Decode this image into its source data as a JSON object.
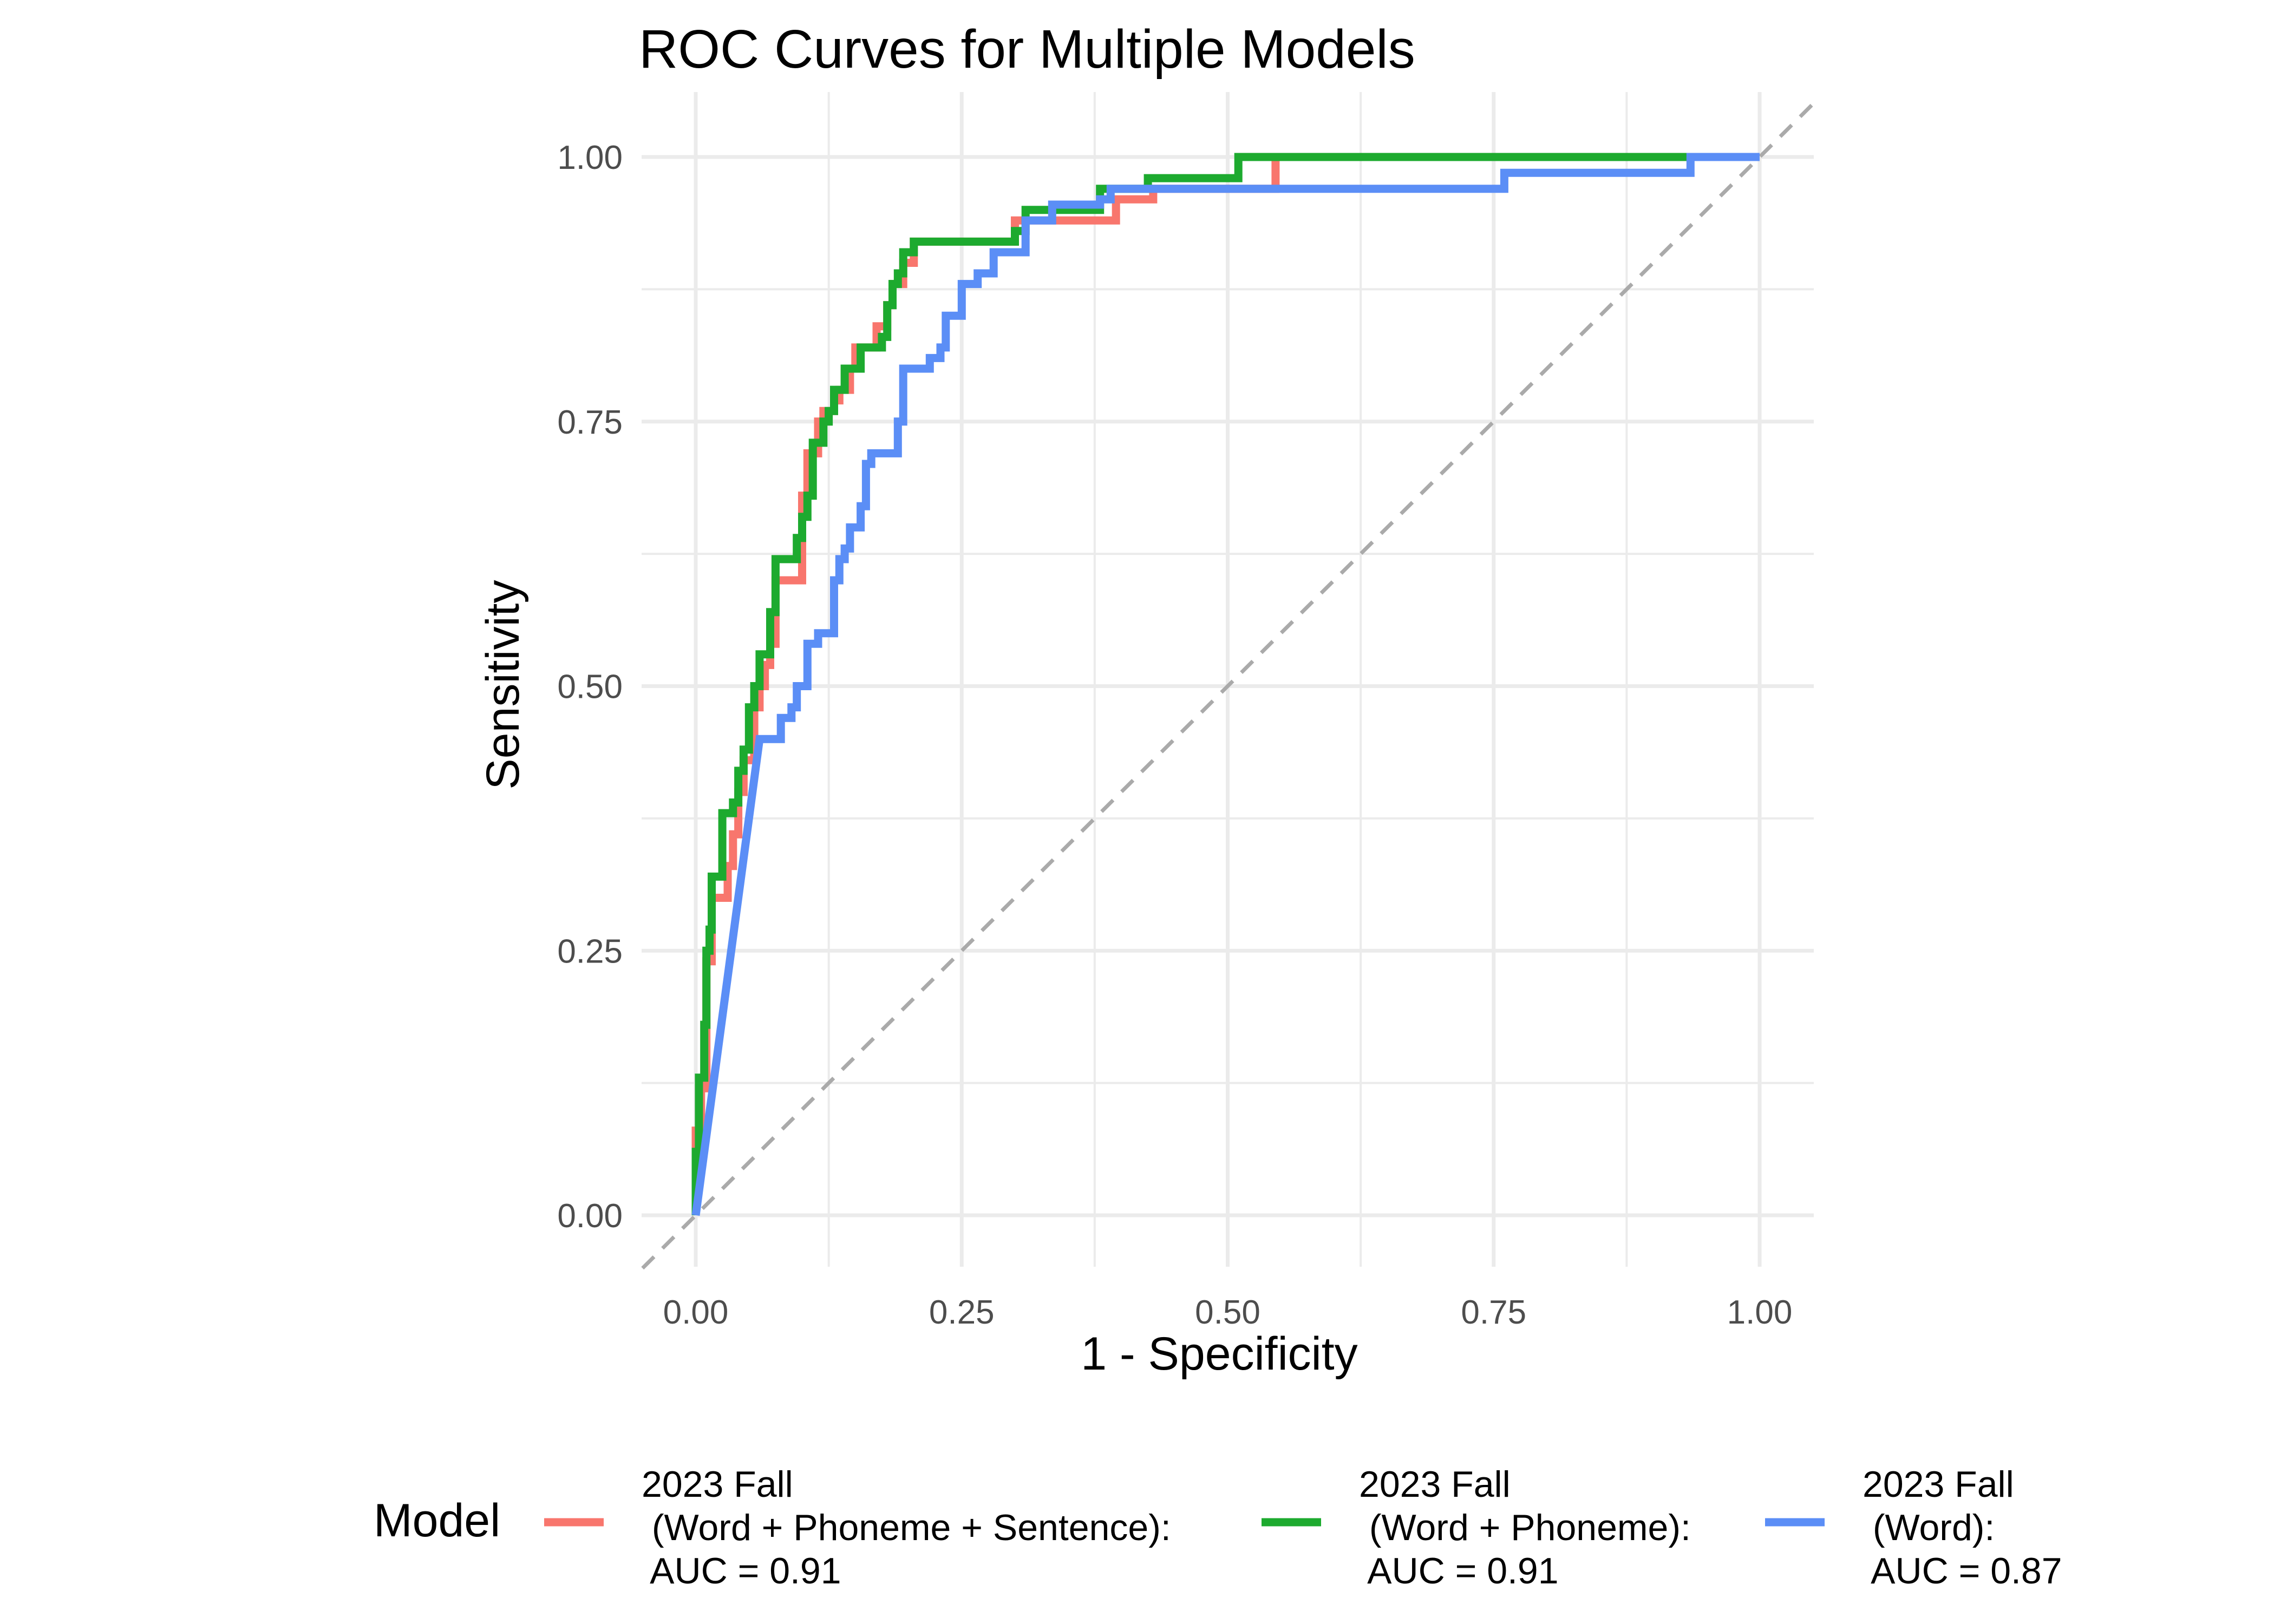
{
  "chart_data": {
    "type": "line",
    "title": "ROC Curves for Multiple Models",
    "xlabel": "1 - Specificity",
    "ylabel": "Sensitivity",
    "xlim": [
      0,
      1
    ],
    "ylim": [
      0,
      1
    ],
    "x_ticks": [
      "0.00",
      "0.25",
      "0.50",
      "0.75",
      "1.00"
    ],
    "y_ticks": [
      "0.00",
      "0.25",
      "0.50",
      "0.75",
      "1.00"
    ],
    "grid": true,
    "legend_position": "bottom",
    "legend_title": "Model",
    "reference_line": {
      "style": "dashed",
      "color": "#aaaaaa",
      "points": [
        [
          0,
          0
        ],
        [
          1,
          1
        ]
      ]
    },
    "series": [
      {
        "name": "2023 Fall\n (Word + Phoneme + Sentence):\n AUC = 0.91",
        "color": "#F8766D",
        "points": [
          [
            0,
            0
          ],
          [
            0,
            0.08
          ],
          [
            0.005,
            0.08
          ],
          [
            0.005,
            0.12
          ],
          [
            0.01,
            0.12
          ],
          [
            0.01,
            0.24
          ],
          [
            0.015,
            0.24
          ],
          [
            0.015,
            0.3
          ],
          [
            0.03,
            0.3
          ],
          [
            0.03,
            0.33
          ],
          [
            0.035,
            0.33
          ],
          [
            0.035,
            0.36
          ],
          [
            0.04,
            0.36
          ],
          [
            0.04,
            0.4
          ],
          [
            0.045,
            0.4
          ],
          [
            0.045,
            0.43
          ],
          [
            0.055,
            0.43
          ],
          [
            0.055,
            0.48
          ],
          [
            0.06,
            0.48
          ],
          [
            0.06,
            0.5
          ],
          [
            0.065,
            0.5
          ],
          [
            0.065,
            0.52
          ],
          [
            0.07,
            0.52
          ],
          [
            0.07,
            0.54
          ],
          [
            0.075,
            0.54
          ],
          [
            0.075,
            0.6
          ],
          [
            0.1,
            0.6
          ],
          [
            0.1,
            0.68
          ],
          [
            0.105,
            0.68
          ],
          [
            0.105,
            0.72
          ],
          [
            0.115,
            0.72
          ],
          [
            0.115,
            0.75
          ],
          [
            0.12,
            0.75
          ],
          [
            0.12,
            0.76
          ],
          [
            0.13,
            0.76
          ],
          [
            0.13,
            0.77
          ],
          [
            0.135,
            0.77
          ],
          [
            0.135,
            0.78
          ],
          [
            0.145,
            0.78
          ],
          [
            0.145,
            0.8
          ],
          [
            0.15,
            0.8
          ],
          [
            0.15,
            0.82
          ],
          [
            0.17,
            0.82
          ],
          [
            0.17,
            0.84
          ],
          [
            0.18,
            0.84
          ],
          [
            0.18,
            0.86
          ],
          [
            0.185,
            0.86
          ],
          [
            0.185,
            0.88
          ],
          [
            0.195,
            0.88
          ],
          [
            0.195,
            0.9
          ],
          [
            0.205,
            0.9
          ],
          [
            0.205,
            0.92
          ],
          [
            0.3,
            0.92
          ],
          [
            0.3,
            0.94
          ],
          [
            0.315,
            0.94
          ],
          [
            0.315,
            0.94
          ],
          [
            0.395,
            0.94
          ],
          [
            0.395,
            0.96
          ],
          [
            0.43,
            0.96
          ],
          [
            0.43,
            0.97
          ],
          [
            0.545,
            0.97
          ],
          [
            0.545,
            0.985
          ],
          [
            0.545,
            1.0
          ],
          [
            0.935,
            1.0
          ],
          [
            1,
            1.0
          ]
        ]
      },
      {
        "name": "2023 Fall\n (Word + Phoneme):\n AUC = 0.91",
        "color": "#1DAA2F",
        "points": [
          [
            0,
            0
          ],
          [
            0,
            0.06
          ],
          [
            0.003,
            0.06
          ],
          [
            0.003,
            0.13
          ],
          [
            0.008,
            0.13
          ],
          [
            0.008,
            0.18
          ],
          [
            0.01,
            0.18
          ],
          [
            0.01,
            0.25
          ],
          [
            0.013,
            0.25
          ],
          [
            0.013,
            0.27
          ],
          [
            0.015,
            0.27
          ],
          [
            0.015,
            0.32
          ],
          [
            0.025,
            0.32
          ],
          [
            0.025,
            0.38
          ],
          [
            0.035,
            0.38
          ],
          [
            0.035,
            0.39
          ],
          [
            0.04,
            0.39
          ],
          [
            0.04,
            0.42
          ],
          [
            0.045,
            0.42
          ],
          [
            0.045,
            0.44
          ],
          [
            0.05,
            0.44
          ],
          [
            0.05,
            0.48
          ],
          [
            0.055,
            0.48
          ],
          [
            0.055,
            0.5
          ],
          [
            0.06,
            0.5
          ],
          [
            0.06,
            0.53
          ],
          [
            0.07,
            0.53
          ],
          [
            0.07,
            0.57
          ],
          [
            0.075,
            0.57
          ],
          [
            0.075,
            0.62
          ],
          [
            0.095,
            0.62
          ],
          [
            0.095,
            0.64
          ],
          [
            0.1,
            0.64
          ],
          [
            0.1,
            0.66
          ],
          [
            0.105,
            0.66
          ],
          [
            0.105,
            0.68
          ],
          [
            0.11,
            0.68
          ],
          [
            0.11,
            0.73
          ],
          [
            0.12,
            0.73
          ],
          [
            0.12,
            0.75
          ],
          [
            0.125,
            0.75
          ],
          [
            0.125,
            0.76
          ],
          [
            0.13,
            0.76
          ],
          [
            0.13,
            0.78
          ],
          [
            0.14,
            0.78
          ],
          [
            0.14,
            0.8
          ],
          [
            0.155,
            0.8
          ],
          [
            0.155,
            0.82
          ],
          [
            0.175,
            0.82
          ],
          [
            0.175,
            0.83
          ],
          [
            0.18,
            0.83
          ],
          [
            0.18,
            0.86
          ],
          [
            0.185,
            0.86
          ],
          [
            0.185,
            0.88
          ],
          [
            0.19,
            0.88
          ],
          [
            0.19,
            0.89
          ],
          [
            0.195,
            0.89
          ],
          [
            0.195,
            0.91
          ],
          [
            0.205,
            0.91
          ],
          [
            0.205,
            0.92
          ],
          [
            0.3,
            0.92
          ],
          [
            0.3,
            0.93
          ],
          [
            0.31,
            0.93
          ],
          [
            0.31,
            0.95
          ],
          [
            0.38,
            0.95
          ],
          [
            0.38,
            0.97
          ],
          [
            0.425,
            0.97
          ],
          [
            0.425,
            0.98
          ],
          [
            0.51,
            0.98
          ],
          [
            0.51,
            1.0
          ],
          [
            0.94,
            1.0
          ],
          [
            1,
            1.0
          ]
        ]
      },
      {
        "name": "2023 Fall\n (Word):\n AUC = 0.87",
        "color": "#5B8EF6",
        "points": [
          [
            0,
            0
          ],
          [
            0.06,
            0.45
          ],
          [
            0.08,
            0.45
          ],
          [
            0.08,
            0.47
          ],
          [
            0.09,
            0.47
          ],
          [
            0.09,
            0.48
          ],
          [
            0.095,
            0.48
          ],
          [
            0.095,
            0.5
          ],
          [
            0.105,
            0.5
          ],
          [
            0.105,
            0.54
          ],
          [
            0.115,
            0.54
          ],
          [
            0.115,
            0.55
          ],
          [
            0.13,
            0.55
          ],
          [
            0.13,
            0.6
          ],
          [
            0.135,
            0.6
          ],
          [
            0.135,
            0.62
          ],
          [
            0.14,
            0.62
          ],
          [
            0.14,
            0.63
          ],
          [
            0.145,
            0.63
          ],
          [
            0.145,
            0.65
          ],
          [
            0.155,
            0.65
          ],
          [
            0.155,
            0.67
          ],
          [
            0.16,
            0.67
          ],
          [
            0.16,
            0.71
          ],
          [
            0.165,
            0.71
          ],
          [
            0.165,
            0.72
          ],
          [
            0.19,
            0.72
          ],
          [
            0.19,
            0.75
          ],
          [
            0.195,
            0.75
          ],
          [
            0.195,
            0.8
          ],
          [
            0.22,
            0.8
          ],
          [
            0.22,
            0.81
          ],
          [
            0.23,
            0.81
          ],
          [
            0.23,
            0.82
          ],
          [
            0.235,
            0.82
          ],
          [
            0.235,
            0.85
          ],
          [
            0.25,
            0.85
          ],
          [
            0.25,
            0.88
          ],
          [
            0.265,
            0.88
          ],
          [
            0.265,
            0.89
          ],
          [
            0.28,
            0.89
          ],
          [
            0.28,
            0.91
          ],
          [
            0.31,
            0.91
          ],
          [
            0.31,
            0.94
          ],
          [
            0.335,
            0.94
          ],
          [
            0.335,
            0.955
          ],
          [
            0.38,
            0.955
          ],
          [
            0.38,
            0.96
          ],
          [
            0.39,
            0.96
          ],
          [
            0.39,
            0.97
          ],
          [
            0.76,
            0.97
          ],
          [
            0.76,
            0.985
          ],
          [
            0.935,
            0.985
          ],
          [
            0.935,
            1.0
          ],
          [
            1,
            1.0
          ]
        ]
      }
    ]
  }
}
